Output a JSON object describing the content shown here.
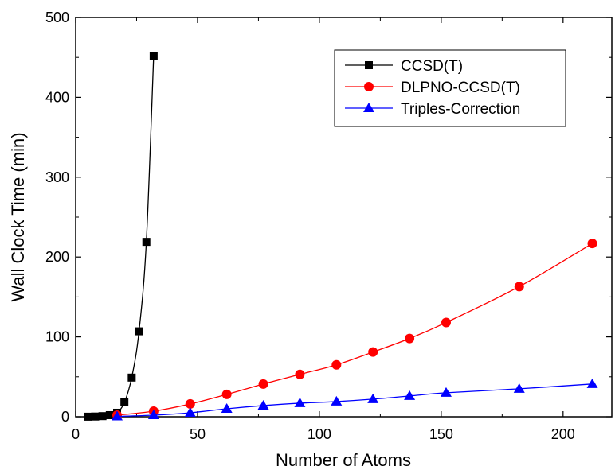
{
  "chart_data": {
    "type": "line",
    "title": "",
    "xlabel": "Number of Atoms",
    "ylabel": "Wall Clock Time (min)",
    "xlim": [
      0,
      220
    ],
    "ylim": [
      0,
      500
    ],
    "xticks": [
      0,
      50,
      100,
      150,
      200
    ],
    "yticks": [
      0,
      100,
      200,
      300,
      400,
      500
    ],
    "grid": false,
    "legend_position": "top-right",
    "series": [
      {
        "name": "CCSD(T)",
        "color": "#000000",
        "marker": "square",
        "x": [
          5,
          8,
          11,
          14,
          17,
          20,
          23,
          26,
          29,
          32
        ],
        "y": [
          0.1,
          0.3,
          0.8,
          2,
          5,
          18,
          49,
          107,
          219,
          452
        ]
      },
      {
        "name": "DLPNO-CCSD(T)",
        "color": "#ff0000",
        "marker": "circle",
        "x": [
          17,
          32,
          47,
          62,
          77,
          92,
          107,
          122,
          137,
          152,
          182,
          212
        ],
        "y": [
          2,
          7,
          16,
          28,
          41,
          53,
          65,
          81,
          98,
          118,
          163,
          217
        ]
      },
      {
        "name": "Triples-Correction",
        "color": "#0000ff",
        "marker": "triangle",
        "x": [
          17,
          32,
          47,
          62,
          77,
          92,
          107,
          122,
          137,
          152,
          182,
          212
        ],
        "y": [
          0.5,
          2,
          5,
          10,
          14,
          17,
          19,
          22,
          26,
          30,
          35,
          41
        ]
      }
    ]
  }
}
